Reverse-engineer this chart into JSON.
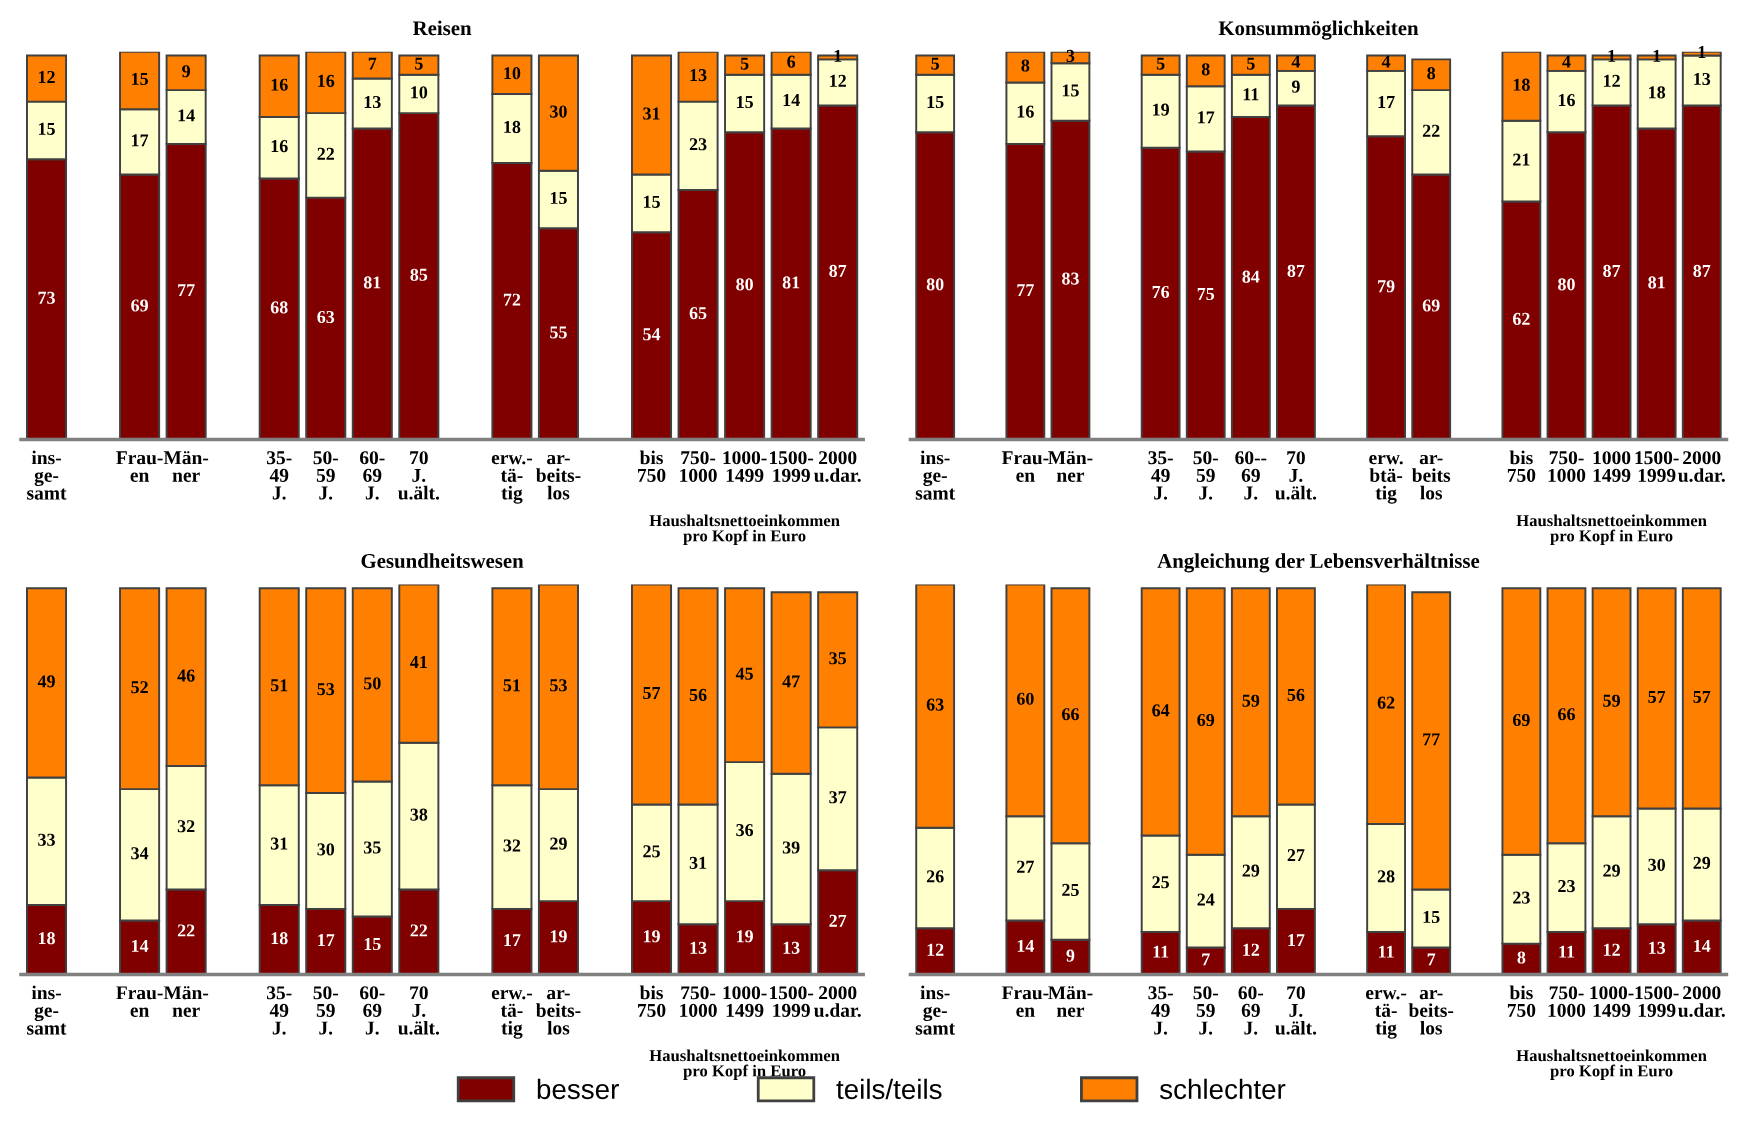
{
  "chart_data": [
    {
      "type": "bar",
      "stacked": true,
      "title": "Reisen",
      "data_labels": true,
      "legend": "bottom",
      "tick_labels": "x",
      "ylim": [
        0,
        101
      ],
      "categories": [
        "ins-\nge-\nsamt",
        null,
        "Frau-\nen",
        "Män-\nner",
        null,
        "35-\n49\nJ.",
        "50-\n59\nJ.",
        "60-\n69\nJ.",
        "70\nJ.\nu.ält.",
        null,
        "erw.-\ntä-\ntig",
        "ar-\nbeits-\nlos",
        null,
        "bis\n750",
        "750-\n1000",
        "1000-\n1499",
        "1500-\n1999",
        "2000\nu.dar."
      ],
      "annotations": [
        "Haushaltsnettoeinkommen\npro Kopf in Euro"
      ],
      "series": [
        {
          "name": "besser",
          "color": "#800000",
          "values": [
            73,
            null,
            69,
            77,
            null,
            68,
            63,
            81,
            85,
            null,
            72,
            55,
            null,
            54,
            65,
            80,
            81,
            87
          ]
        },
        {
          "name": "teils/teils",
          "color": "#ffffcc",
          "values": [
            15,
            null,
            17,
            14,
            null,
            16,
            22,
            13,
            10,
            null,
            18,
            15,
            null,
            15,
            23,
            15,
            14,
            12
          ]
        },
        {
          "name": "schlechter",
          "color": "#ff8000",
          "values": [
            12,
            null,
            15,
            9,
            null,
            16,
            16,
            7,
            5,
            null,
            10,
            30,
            null,
            31,
            13,
            5,
            6,
            1
          ]
        }
      ]
    },
    {
      "type": "bar",
      "stacked": true,
      "title": "Konsummöglichkeiten",
      "data_labels": true,
      "tick_labels": "x",
      "ylim": [
        0,
        101
      ],
      "categories": [
        "ins-\nge-\nsamt",
        null,
        "Frau-\nen",
        "Män-\nner",
        null,
        "35-\n49\nJ.",
        "50-\n59\nJ.",
        "60--\n69\nJ.",
        "70\nJ.\nu.ält.",
        null,
        "erw.\nbtä-\ntig",
        "ar-\nbeits\nlos",
        null,
        "bis\n750",
        "750-\n1000",
        "1000\n1499",
        "1500-\n1999",
        "2000\nu.dar."
      ],
      "annotations": [
        "Haushaltsnettoeinkommen\npro Kopf in Euro"
      ],
      "series": [
        {
          "color": "#800000",
          "values": [
            80,
            null,
            77,
            83,
            null,
            76,
            75,
            84,
            87,
            null,
            79,
            69,
            null,
            62,
            80,
            87,
            81,
            87
          ]
        },
        {
          "color": "#ffffcc",
          "values": [
            15,
            null,
            16,
            15,
            null,
            19,
            17,
            11,
            9,
            null,
            17,
            22,
            null,
            21,
            16,
            12,
            18,
            13
          ]
        },
        {
          "color": "#ff8000",
          "values": [
            5,
            null,
            8,
            3,
            null,
            5,
            8,
            5,
            4,
            null,
            4,
            8,
            null,
            18,
            4,
            1,
            1,
            1
          ]
        }
      ]
    },
    {
      "type": "bar",
      "stacked": true,
      "title": "Gesundheitswesen",
      "data_labels": true,
      "tick_labels": "x",
      "ylim": [
        0,
        101
      ],
      "categories": [
        "ins-\nge-\nsamt",
        null,
        "Frau-\nen",
        "Män-\nner",
        null,
        "35-\n49\nJ.",
        "50-\n59\nJ.",
        "60-\n69\nJ.",
        "70\nJ.\nu.ält.",
        null,
        "erw.-\ntä-\ntig",
        "ar-\nbeits-\nlos",
        null,
        "bis\n750",
        "750-\n1000",
        "1000-\n1499",
        "1500-\n1999",
        "2000\nu.dar."
      ],
      "annotations": [
        "Haushaltsnettoeinkommen\npro Kopf in Euro"
      ],
      "series": [
        {
          "color": "#800000",
          "values": [
            18,
            null,
            14,
            22,
            null,
            18,
            17,
            15,
            22,
            null,
            17,
            19,
            null,
            19,
            13,
            19,
            13,
            27
          ]
        },
        {
          "color": "#ffffcc",
          "values": [
            33,
            null,
            34,
            32,
            null,
            31,
            30,
            35,
            38,
            null,
            32,
            29,
            null,
            25,
            31,
            36,
            39,
            37
          ]
        },
        {
          "color": "#ff8000",
          "values": [
            49,
            null,
            52,
            46,
            null,
            51,
            53,
            50,
            41,
            null,
            51,
            53,
            null,
            57,
            56,
            45,
            47,
            35
          ]
        }
      ]
    },
    {
      "type": "bar",
      "stacked": true,
      "title": "Angleichung der Lebensverhältnisse",
      "data_labels": true,
      "tick_labels": "x",
      "ylim": [
        0,
        101
      ],
      "categories": [
        "ins-\nge-\nsamt",
        null,
        "Frau-\nen",
        "Män-\nner",
        null,
        "35-\n49\nJ.",
        "50-\n59\nJ.",
        "60-\n69\nJ.",
        "70\nJ.\nu.ält.",
        null,
        "erw.-\ntä-\ntig",
        "ar-\nbeits-\nlos",
        null,
        "bis\n750",
        "750-\n1000",
        "1000-\n1499",
        "1500-\n1999",
        "2000\nu.dar."
      ],
      "annotations": [
        "Haushaltsnettoeinkommen\npro Kopf in Euro"
      ],
      "series": [
        {
          "color": "#800000",
          "values": [
            12,
            null,
            14,
            9,
            null,
            11,
            7,
            12,
            17,
            null,
            11,
            7,
            null,
            8,
            11,
            12,
            13,
            14
          ]
        },
        {
          "color": "#ffffcc",
          "values": [
            26,
            null,
            27,
            25,
            null,
            25,
            24,
            29,
            27,
            null,
            28,
            15,
            null,
            23,
            23,
            29,
            30,
            29
          ]
        },
        {
          "color": "#ff8000",
          "values": [
            63,
            null,
            60,
            66,
            null,
            64,
            69,
            59,
            56,
            null,
            62,
            77,
            null,
            69,
            66,
            59,
            57,
            57
          ]
        }
      ]
    }
  ]
}
